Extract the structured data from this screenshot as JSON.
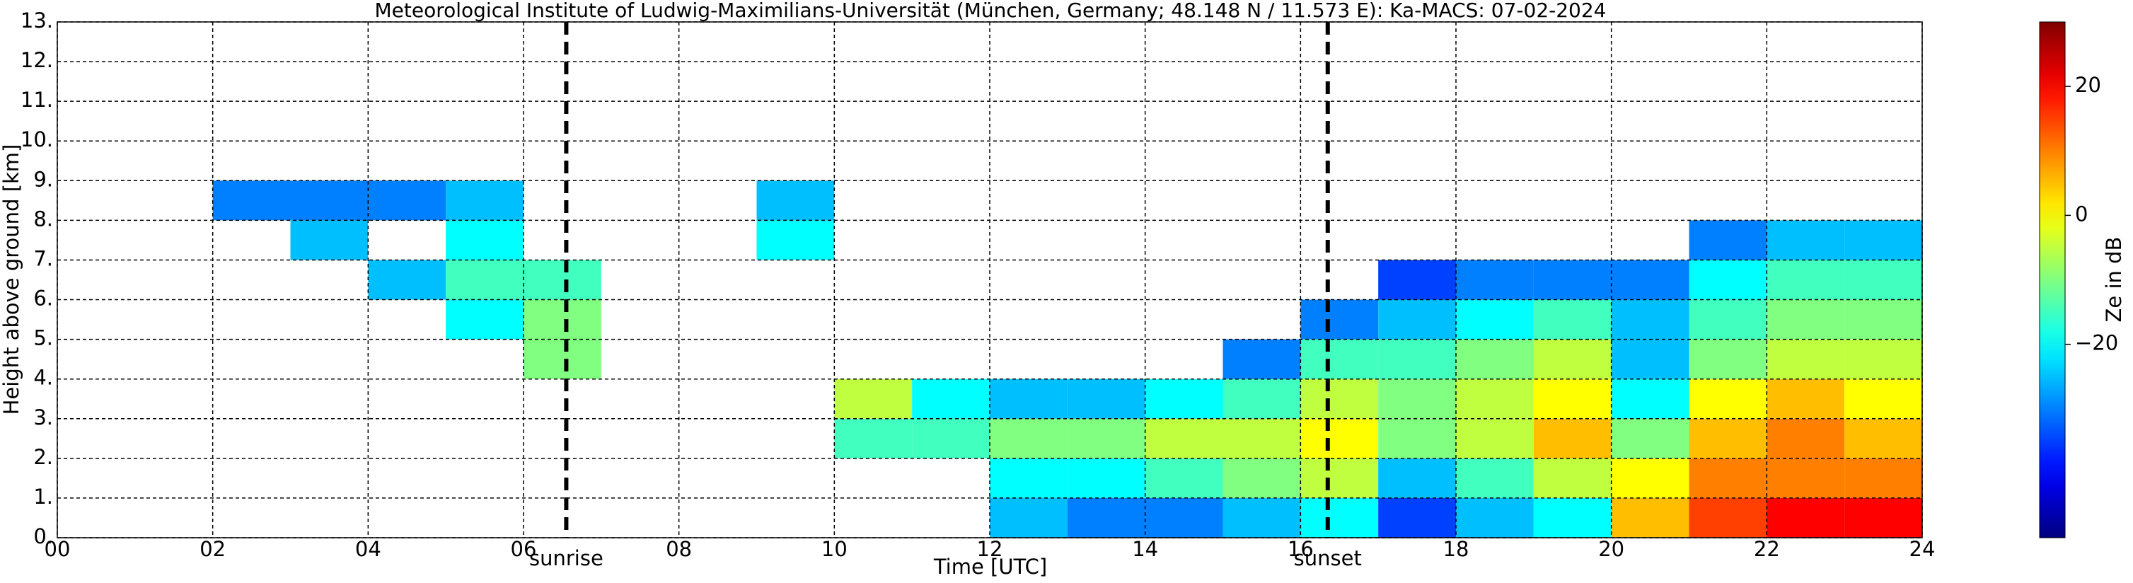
{
  "chart_data": {
    "type": "heatmap",
    "title": "Meteorological Institute of Ludwig-Maximilians-Universität (München, Germany; 48.148 N / 11.573 E):    Ka-MACS: 07-02-2024",
    "x_label": "Time [UTC]",
    "y_label": "Height above ground [km]",
    "colorbar_label": "Ze in dB",
    "colormap": "jet",
    "xlim": [
      0,
      24
    ],
    "xticks": [
      {
        "value": 0,
        "label": "00"
      },
      {
        "value": 2,
        "label": "02"
      },
      {
        "value": 4,
        "label": "04"
      },
      {
        "value": 6,
        "label": "06"
      },
      {
        "value": 8,
        "label": "08"
      },
      10,
      12,
      14,
      16,
      18,
      20,
      22,
      24
    ],
    "ylim": [
      0,
      13
    ],
    "yticks": [
      {
        "value": 0,
        "label": "0."
      },
      {
        "value": 1,
        "label": "1."
      },
      {
        "value": 2,
        "label": "2."
      },
      {
        "value": 3,
        "label": "3."
      },
      {
        "value": 4,
        "label": "4."
      },
      {
        "value": 5,
        "label": "5."
      },
      {
        "value": 6,
        "label": "6."
      },
      {
        "value": 7,
        "label": "7."
      },
      {
        "value": 8,
        "label": "8."
      },
      {
        "value": 9,
        "label": "9."
      },
      {
        "value": 10,
        "label": "10."
      },
      {
        "value": 11,
        "label": "11."
      },
      {
        "value": 12,
        "label": "12."
      },
      {
        "value": 13,
        "label": "13."
      }
    ],
    "clim": [
      -50,
      30
    ],
    "cticks": [
      {
        "value": -20,
        "label": "−20"
      },
      0,
      20
    ],
    "grid": true,
    "x": [
      0,
      1,
      2,
      3,
      4,
      5,
      6,
      7,
      8,
      9,
      10,
      11,
      12,
      13,
      14,
      15,
      16,
      17,
      18,
      19,
      20,
      21,
      22,
      23,
      24
    ],
    "y": [
      0,
      1,
      2,
      3,
      4,
      5,
      6,
      7,
      8,
      9,
      10,
      11,
      12,
      13
    ],
    "z": [
      [
        null,
        null,
        null,
        null,
        null,
        null,
        null,
        null,
        null,
        null,
        null,
        null,
        -25,
        -30,
        -30,
        -25,
        -20,
        -35,
        -25,
        -20,
        5,
        15,
        20,
        20
      ],
      [
        null,
        null,
        null,
        null,
        null,
        null,
        null,
        null,
        null,
        null,
        null,
        null,
        -20,
        -20,
        -15,
        -10,
        -5,
        -25,
        -15,
        -5,
        0,
        10,
        10,
        10
      ],
      [
        null,
        null,
        null,
        null,
        null,
        null,
        null,
        null,
        null,
        null,
        -15,
        -15,
        -10,
        -10,
        -5,
        -5,
        0,
        -10,
        -5,
        5,
        -10,
        5,
        10,
        5
      ],
      [
        null,
        null,
        null,
        null,
        null,
        null,
        null,
        null,
        null,
        null,
        -5,
        -20,
        -25,
        -25,
        -20,
        -15,
        -5,
        -10,
        -5,
        0,
        -20,
        0,
        5,
        0
      ],
      [
        null,
        null,
        null,
        null,
        null,
        null,
        -10,
        null,
        null,
        null,
        null,
        null,
        null,
        null,
        null,
        -30,
        -15,
        -15,
        -10,
        -5,
        -25,
        -10,
        -5,
        -5
      ],
      [
        null,
        null,
        null,
        null,
        null,
        -20,
        -10,
        null,
        null,
        null,
        null,
        null,
        null,
        null,
        null,
        null,
        -30,
        -25,
        -20,
        -15,
        -25,
        -15,
        -10,
        -10
      ],
      [
        null,
        null,
        null,
        null,
        -25,
        -15,
        -15,
        null,
        null,
        null,
        null,
        null,
        null,
        null,
        null,
        null,
        null,
        -35,
        -30,
        -30,
        -30,
        -20,
        -15,
        -15
      ],
      [
        null,
        null,
        null,
        -25,
        null,
        -20,
        null,
        null,
        null,
        -20,
        null,
        null,
        null,
        null,
        null,
        null,
        null,
        null,
        null,
        null,
        null,
        -30,
        -25,
        -25
      ],
      [
        null,
        null,
        -30,
        -30,
        -30,
        -25,
        null,
        null,
        null,
        -25,
        null,
        null,
        null,
        null,
        null,
        null,
        null,
        null,
        null,
        null,
        null,
        null,
        null,
        null
      ],
      [
        null,
        null,
        null,
        null,
        null,
        null,
        null,
        null,
        null,
        null,
        null,
        null,
        null,
        null,
        null,
        null,
        null,
        null,
        null,
        null,
        null,
        null,
        null,
        null
      ],
      [
        null,
        null,
        null,
        null,
        null,
        null,
        null,
        null,
        null,
        null,
        null,
        null,
        null,
        null,
        null,
        null,
        null,
        null,
        null,
        null,
        null,
        null,
        null,
        null
      ],
      [
        null,
        null,
        null,
        null,
        null,
        null,
        null,
        null,
        null,
        null,
        null,
        null,
        null,
        null,
        null,
        null,
        null,
        null,
        null,
        null,
        null,
        null,
        null,
        null
      ],
      [
        null,
        null,
        null,
        null,
        null,
        null,
        null,
        null,
        null,
        null,
        null,
        null,
        null,
        null,
        null,
        null,
        null,
        null,
        null,
        null,
        null,
        null,
        null,
        null
      ]
    ],
    "vlines": [
      {
        "x": 6.55,
        "label": "sunrise"
      },
      {
        "x": 16.35,
        "label": "sunset"
      }
    ]
  }
}
